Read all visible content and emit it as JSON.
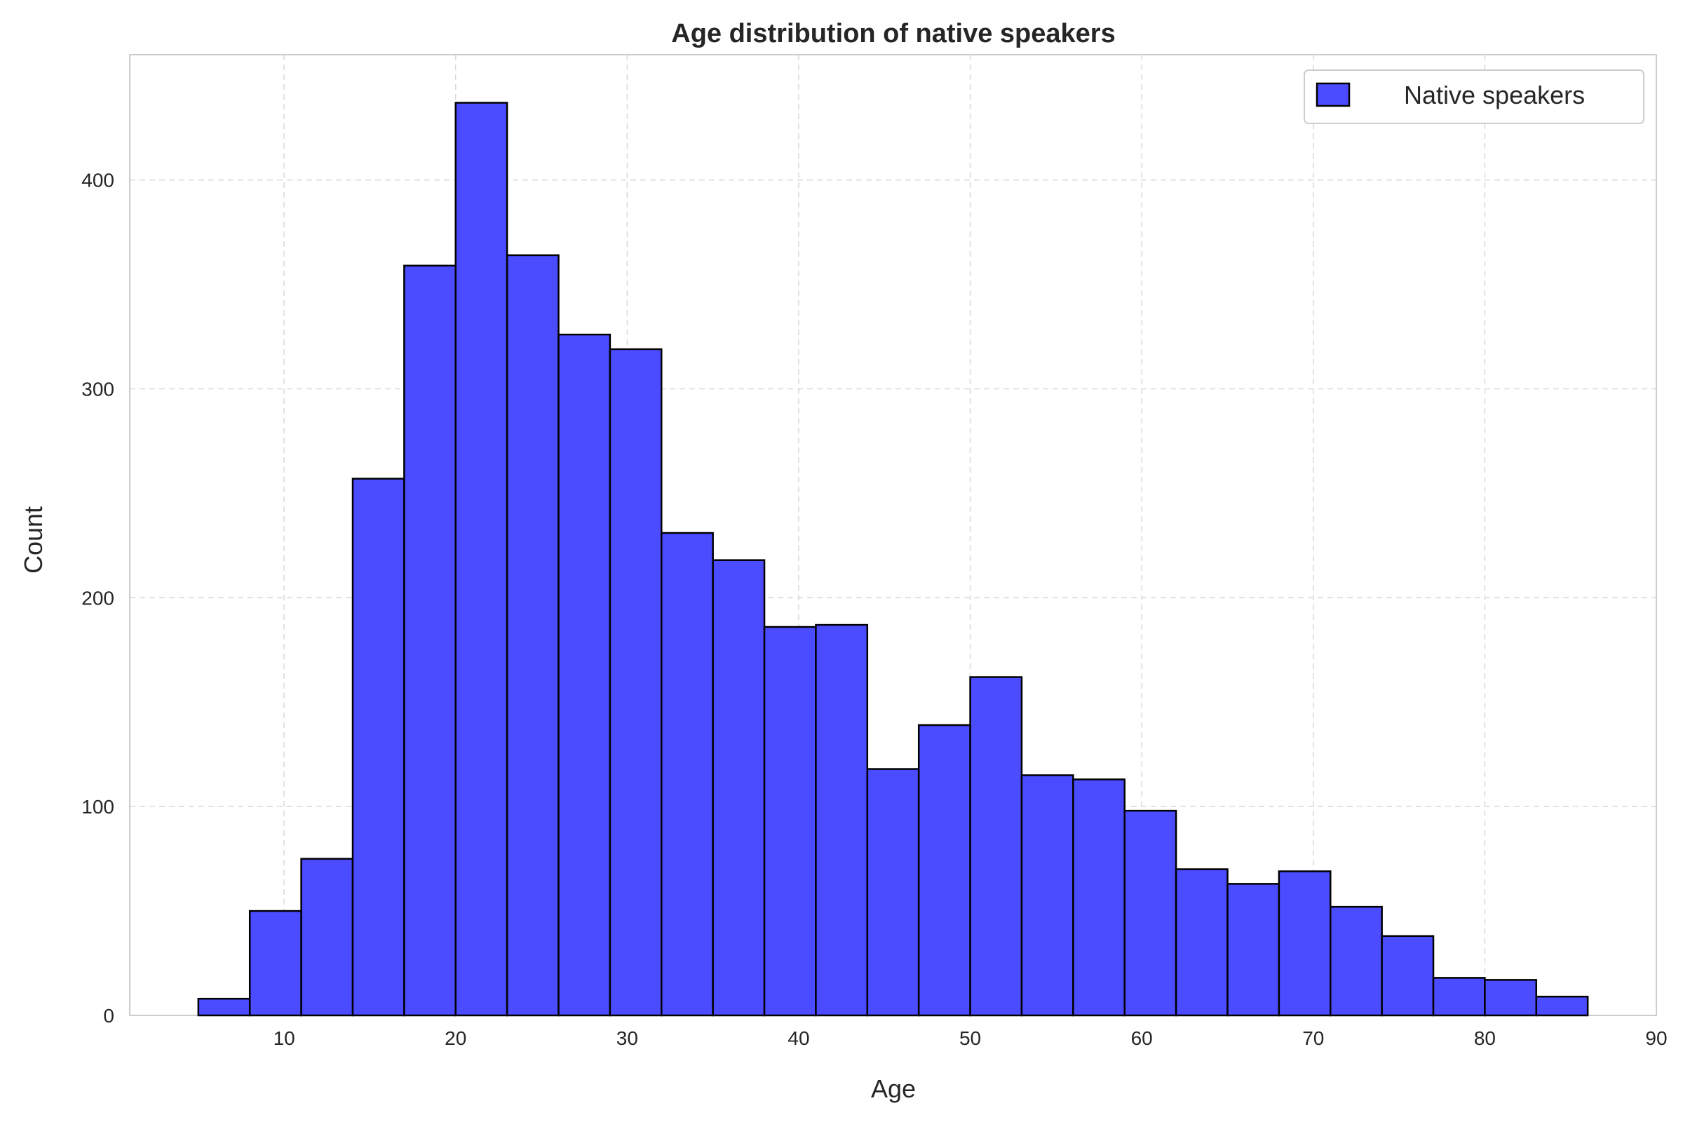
{
  "chart_data": {
    "type": "bar",
    "title": "Age distribution of native speakers",
    "xlabel": "Age",
    "ylabel": "Count",
    "xlim": [
      1,
      90
    ],
    "ylim": [
      0,
      460
    ],
    "xticks": [
      10,
      20,
      30,
      40,
      50,
      60,
      70,
      80,
      90
    ],
    "yticks": [
      0,
      100,
      200,
      300,
      400
    ],
    "grid": true,
    "legend_position": "top-right",
    "series": [
      {
        "name": "Native speakers",
        "color": "#4b4bff",
        "bin_edges": [
          5,
          8,
          11,
          14,
          17,
          20,
          23,
          26,
          29,
          32,
          35,
          38,
          41,
          44,
          47,
          50,
          53,
          56,
          59,
          62,
          65,
          68,
          71,
          74,
          77,
          80,
          83,
          86
        ],
        "values": [
          8,
          50,
          75,
          257,
          359,
          437,
          364,
          326,
          319,
          231,
          218,
          186,
          187,
          118,
          139,
          162,
          115,
          113,
          98,
          70,
          63,
          69,
          52,
          38,
          18,
          17,
          9
        ]
      }
    ]
  }
}
